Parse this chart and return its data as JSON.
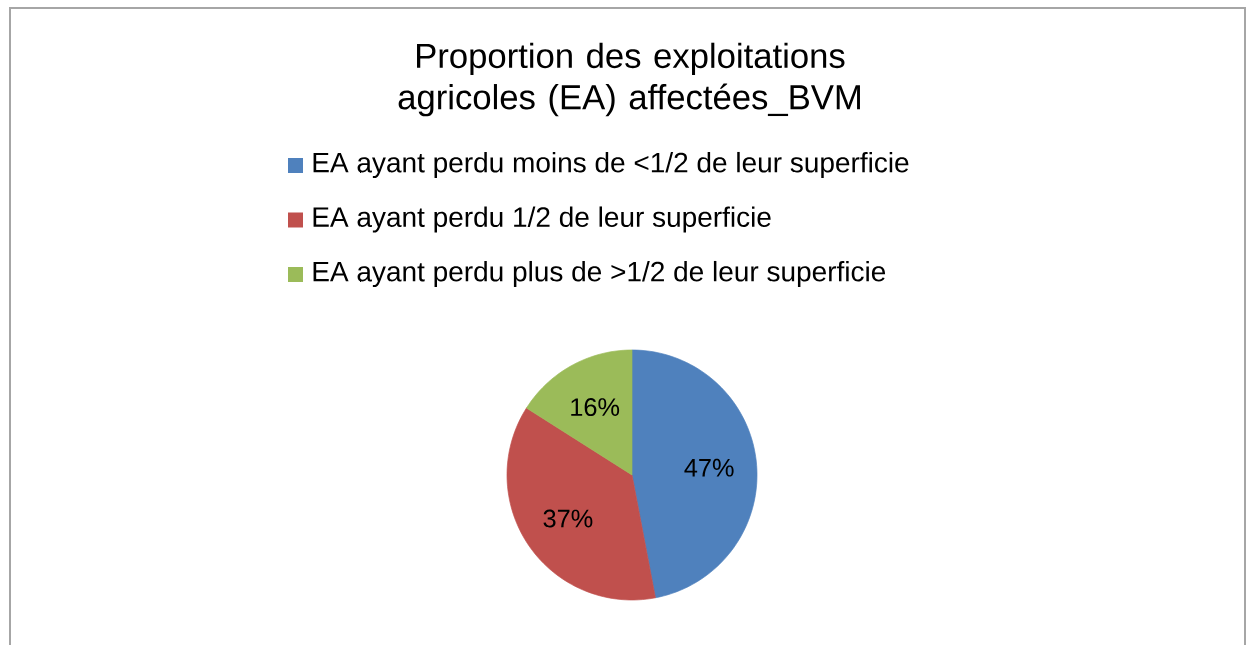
{
  "chart_data": {
    "type": "pie",
    "title": "Proportion des exploitations agricoles (EA) affectées_BVM",
    "categories": [
      "EA ayant perdu moins de <1/2 de leur superficie",
      "EA ayant perdu 1/2 de leur superficie",
      "EA ayant perdu plus de >1/2 de leur superficie"
    ],
    "values": [
      47,
      37,
      16
    ],
    "colors": [
      "#4f81bd",
      "#c0504d",
      "#9bbb59"
    ],
    "value_labels": [
      "47%",
      "37%",
      "16%"
    ],
    "legend": "top"
  }
}
